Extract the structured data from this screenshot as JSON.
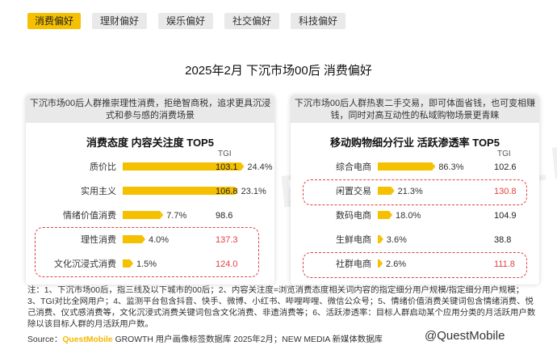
{
  "tabs": [
    {
      "label": "消费偏好",
      "active": true
    },
    {
      "label": "理财偏好",
      "active": false
    },
    {
      "label": "娱乐偏好",
      "active": false
    },
    {
      "label": "社交偏好",
      "active": false
    },
    {
      "label": "科技偏好",
      "active": false
    }
  ],
  "main_title": "2025年2月 下沉市场00后 消费偏好",
  "watermark": "QUESTMOBILE",
  "colors": {
    "accent": "#f5c000",
    "highlight": "#e04040",
    "panel_bg": "#e9e9e9"
  },
  "chart_data": [
    {
      "type": "bar",
      "description": "下沉市场00后人群推崇理性消费，拒绝智商税，追求更具沉浸式和参与感的消费场景",
      "title": "消费态度 内容关注度 TOP5",
      "tgi_label": "TGI",
      "categories": [
        "质价比",
        "实用主义",
        "情绪价值消费",
        "理性消费",
        "文化沉浸式消费"
      ],
      "values": [
        24.4,
        23.1,
        7.7,
        4.0,
        1.5
      ],
      "value_labels": [
        "24.4%",
        "23.1%",
        "7.7%",
        "4.0%",
        "1.5%"
      ],
      "tgi": [
        "103.1",
        "106.8",
        "98.6",
        "137.3",
        "124.0"
      ],
      "highlighted": [
        false,
        false,
        false,
        true,
        true
      ],
      "xlim": [
        0,
        100
      ]
    },
    {
      "type": "bar",
      "description": "下沉市场00后人群热衷二手交易，即可体面省钱，也可变相赚钱，同时对高互动性的私域购物场景更青睐",
      "title": "移动购物细分行业 活跃渗透率 TOP5",
      "tgi_label": "TGI",
      "categories": [
        "综合电商",
        "闲置交易",
        "数码电商",
        "生鲜电商",
        "社群电商"
      ],
      "values": [
        86.3,
        21.3,
        18.0,
        3.6,
        2.6
      ],
      "value_labels": [
        "86.3%",
        "21.3%",
        "18.0%",
        "3.6%",
        "2.6%"
      ],
      "tgi": [
        "102.6",
        "130.8",
        "104.9",
        "38.8",
        "111.8"
      ],
      "highlighted": [
        false,
        true,
        false,
        false,
        true
      ],
      "xlim": [
        0,
        100
      ]
    }
  ],
  "note": "注：1、下沉市场00后，指三线及以下城市的00后；2、内容关注度=浏览消费态度相关词内容的指定细分用户规模/指定细分用户规模；3、TGI对比全网用户；4、监测平台包含抖音、快手、微博、小红书、哔哩哔哩、微信公众号；5、情绪价值消费关键词包含情绪消费、悦己消费、仪式感消费等，文化沉浸式消费关键词包含文化消费、非遗消费等；6、活跃渗透率：目标人群启动某个应用分类的月活跃用户数除以该目标人群的月活跃用户数。",
  "source": {
    "prefix": "Source：",
    "brand": "QuestMobile",
    "rest": " GROWTH 用户画像标签数据库 2025年2月；NEW MEDIA 新媒体数据库"
  },
  "footer_brand": "@QuestMobile"
}
